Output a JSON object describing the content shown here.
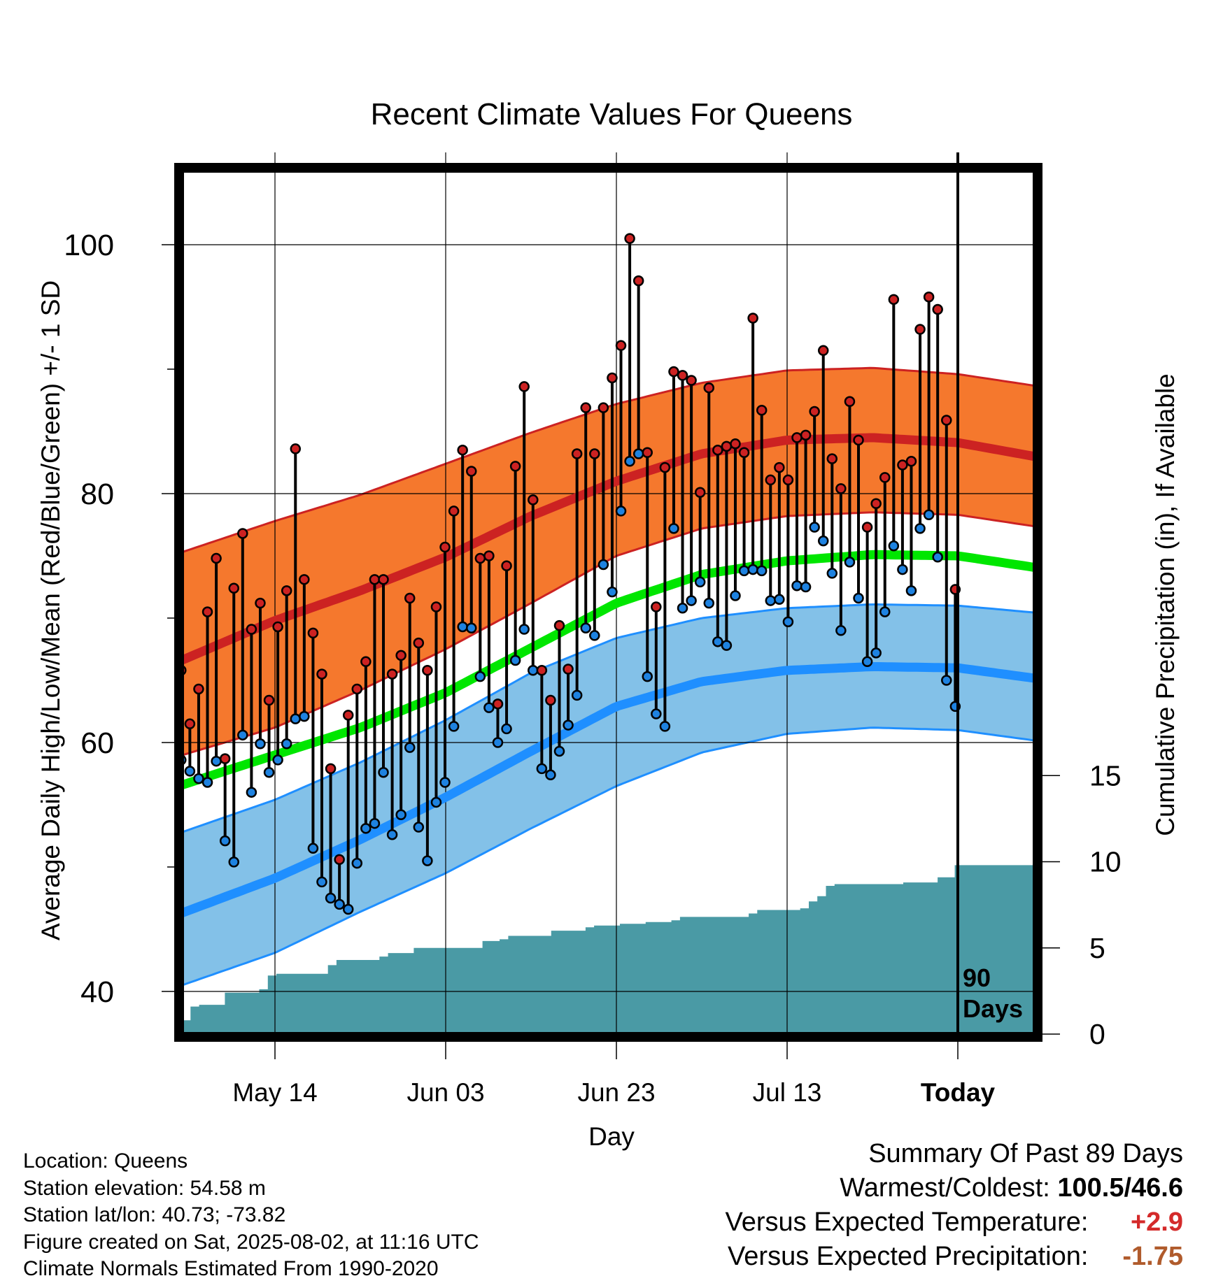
{
  "chart_data": {
    "type": "line",
    "title": "Recent Climate Values For Queens",
    "xlabel": "Day",
    "ylabel": "Average Daily High/Low/Mean (Red/Blue/Green) +/- 1 SD",
    "y2label": "Cumulative Precipitation (in), If Available",
    "ylim": [
      37.2,
      106
    ],
    "y_ticks": [
      40,
      60,
      80,
      100
    ],
    "y2lim": [
      0,
      45
    ],
    "y2_ticks": [
      0,
      5,
      10,
      15
    ],
    "x_tick_labels": [
      "May 14",
      "Jun 03",
      "Jun 23",
      "Jul 13",
      "Today"
    ],
    "x_tick_days": [
      0,
      20,
      40,
      60,
      80
    ],
    "day_range": [
      -11.3,
      89.7
    ],
    "today_day": 80,
    "today_marker_label": [
      "90",
      "Days"
    ],
    "grid": true,
    "daily_high": [
      65.8,
      61.5,
      64.3,
      70.5,
      74.8,
      58.7,
      72.4,
      76.8,
      69.1,
      71.2,
      63.4,
      69.3,
      72.2,
      83.6,
      73.1,
      68.8,
      65.5,
      57.9,
      50.6,
      62.2,
      64.3,
      66.5,
      73.1,
      73.1,
      65.5,
      67.0,
      71.6,
      68.0,
      65.8,
      70.9,
      75.7,
      78.6,
      83.5,
      81.8,
      74.8,
      75.0,
      63.1,
      74.2,
      82.2,
      88.6,
      79.5,
      65.8,
      63.4,
      69.4,
      65.9,
      83.2,
      86.9,
      83.2,
      86.9,
      89.3,
      91.9,
      100.5,
      97.1,
      83.3,
      70.9,
      82.1,
      89.8,
      89.5,
      89.1,
      80.1,
      88.5,
      83.5,
      83.8,
      84.0,
      83.3,
      94.1,
      86.7,
      81.1,
      82.1,
      81.1,
      84.5,
      84.7,
      86.6,
      91.5,
      82.8,
      80.4,
      87.4,
      84.3,
      77.3,
      79.2,
      81.3,
      95.6,
      82.3,
      82.6,
      93.2,
      95.8,
      94.8,
      85.9,
      72.3
    ],
    "daily_low": [
      58.6,
      57.7,
      57.1,
      56.8,
      58.5,
      52.1,
      50.4,
      60.6,
      56.0,
      59.9,
      57.6,
      58.6,
      59.9,
      61.9,
      62.1,
      51.5,
      48.8,
      47.5,
      47.0,
      46.6,
      50.3,
      53.1,
      53.5,
      57.6,
      52.6,
      54.2,
      59.6,
      53.2,
      50.5,
      55.2,
      56.8,
      61.3,
      69.3,
      69.2,
      65.3,
      62.8,
      60.0,
      61.1,
      66.6,
      69.1,
      65.8,
      57.9,
      57.4,
      59.3,
      61.4,
      63.8,
      69.2,
      68.6,
      74.3,
      72.1,
      78.6,
      82.6,
      83.2,
      65.3,
      62.3,
      61.3,
      77.2,
      70.8,
      71.4,
      72.9,
      71.2,
      68.1,
      67.8,
      71.8,
      73.8,
      73.9,
      73.8,
      71.4,
      71.5,
      69.7,
      72.6,
      72.5,
      77.3,
      76.2,
      73.6,
      69.0,
      74.5,
      71.6,
      66.5,
      67.2,
      70.5,
      75.8,
      73.9,
      72.2,
      77.2,
      78.3,
      74.9,
      65.0,
      62.9
    ],
    "precip_cumulative": [
      0.8,
      1.6,
      1.7,
      1.7,
      1.7,
      2.4,
      2.4,
      2.4,
      2.4,
      2.6,
      3.4,
      3.5,
      3.5,
      3.5,
      3.5,
      3.5,
      3.5,
      4.0,
      4.3,
      4.3,
      4.3,
      4.3,
      4.3,
      4.5,
      4.7,
      4.7,
      4.7,
      5.0,
      5.0,
      5.0,
      5.0,
      5.0,
      5.0,
      5.0,
      5.0,
      5.4,
      5.4,
      5.5,
      5.7,
      5.7,
      5.7,
      5.7,
      5.7,
      6.0,
      6.0,
      6.0,
      6.0,
      6.2,
      6.3,
      6.3,
      6.3,
      6.4,
      6.4,
      6.4,
      6.5,
      6.5,
      6.5,
      6.6,
      6.8,
      6.8,
      6.8,
      6.8,
      6.8,
      6.8,
      6.8,
      6.8,
      7.0,
      7.2,
      7.2,
      7.2,
      7.2,
      7.2,
      7.3,
      7.7,
      8.0,
      8.6,
      8.7,
      8.7,
      8.7,
      8.7,
      8.7,
      8.7,
      8.7,
      8.7,
      8.8,
      8.8,
      8.8,
      8.8,
      9.1,
      9.1,
      9.8,
      9.8,
      9.8,
      9.8,
      9.8,
      9.8,
      9.8,
      9.8,
      9.8,
      9.8,
      9.8
    ],
    "normals": {
      "days": [
        -11.3,
        0,
        10,
        20,
        30,
        40,
        50,
        60,
        70,
        80,
        89.7
      ],
      "high_mean": [
        66.5,
        69.8,
        72.2,
        74.9,
        78.2,
        81.0,
        83.2,
        84.3,
        84.5,
        84.1,
        82.9
      ],
      "high_plus_sd": [
        75.2,
        77.8,
        79.9,
        82.4,
        84.9,
        87.2,
        88.9,
        89.9,
        90.1,
        89.6,
        88.6
      ],
      "high_minus_sd": [
        58.9,
        61.2,
        64.2,
        67.5,
        71.2,
        75.0,
        77.2,
        78.2,
        78.5,
        78.3,
        77.3
      ],
      "mean": [
        56.5,
        59.0,
        61.2,
        64.0,
        67.6,
        71.2,
        73.5,
        74.6,
        75.1,
        75.0,
        74.0
      ],
      "low_mean": [
        46.2,
        49.1,
        52.2,
        55.6,
        59.3,
        62.9,
        64.9,
        65.8,
        66.1,
        66.0,
        65.1
      ],
      "low_plus_sd": [
        52.7,
        55.4,
        58.4,
        61.8,
        65.6,
        68.4,
        70.0,
        70.8,
        71.1,
        71.0,
        70.4
      ],
      "low_minus_sd": [
        40.4,
        43.1,
        46.4,
        49.5,
        53.1,
        56.5,
        59.2,
        60.7,
        61.2,
        61.0,
        60.1
      ]
    },
    "colors": {
      "high": "#cc2222",
      "high_band": "#f5782d",
      "mean": "#00e600",
      "low": "#1f8fff",
      "low_band": "#83c1e8",
      "precip": "#4a9aa5",
      "high_point": "#cc2222",
      "low_point": "#1e82e0"
    }
  },
  "info": {
    "location": "Location: Queens",
    "elevation": "Station elevation: 54.58 m",
    "latlon": "Station lat/lon: 40.73; -73.82",
    "created": "Figure created on Sat, 2025-08-02, at 11:16 UTC",
    "normals": "Climate Normals Estimated From 1990-2020"
  },
  "summary": {
    "heading": "Summary Of Past 89 Days",
    "warmest_coldest_label": "Warmest/Coldest:",
    "warmest_coldest_value": "100.5/46.6",
    "temp_label": "Versus Expected Temperature:",
    "temp_value": "+2.9",
    "temp_color": "#d42a2a",
    "precip_label": "Versus Expected Precipitation:",
    "precip_value": "-1.75",
    "precip_color": "#b05b2c"
  }
}
